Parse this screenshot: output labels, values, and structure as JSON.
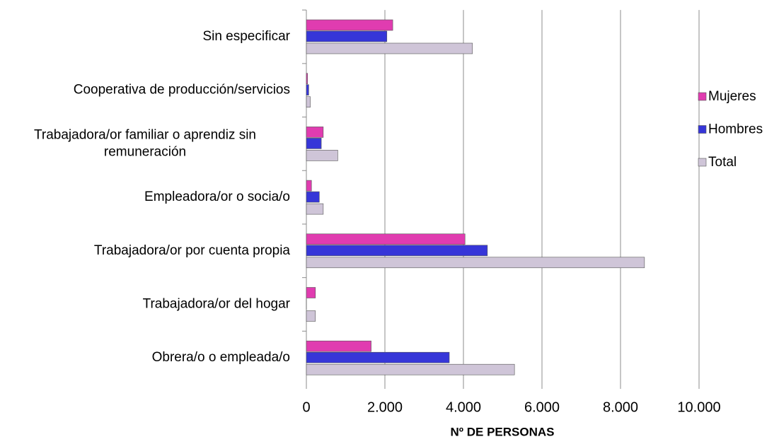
{
  "chart_data": {
    "type": "hbar",
    "categories": [
      "Sin especificar",
      "Cooperativa de producción/servicios",
      "Trabajadora/or familiar o aprendiz sin remuneración",
      "Empleadora/or o socia/o",
      "Trabajadora/or por cuenta propia",
      "Trabajadora/or del hogar",
      "Obrera/o o empleada/o"
    ],
    "series": [
      {
        "name": "Mujeres",
        "color": "#e03cb0",
        "values": [
          2200,
          30,
          430,
          130,
          4040,
          230,
          1650
        ]
      },
      {
        "name": "Hombres",
        "color": "#3636d8",
        "values": [
          2050,
          60,
          380,
          330,
          4610,
          0,
          3640
        ]
      },
      {
        "name": "Total",
        "color": "#cfc5d8",
        "values": [
          4230,
          100,
          800,
          430,
          8610,
          230,
          5300
        ]
      }
    ],
    "xlabel": "Nº DE PERSONAS",
    "xlim": [
      0,
      10000
    ],
    "xticks": [
      0,
      {
        "value": 2000,
        "label": "2.000"
      },
      {
        "value": 4000,
        "label": "4.000"
      },
      {
        "value": 6000,
        "label": "6.000"
      },
      {
        "value": 8000,
        "label": "8.000"
      },
      {
        "value": 10000,
        "label": "10.000"
      }
    ],
    "grid": true,
    "legend": "right"
  }
}
